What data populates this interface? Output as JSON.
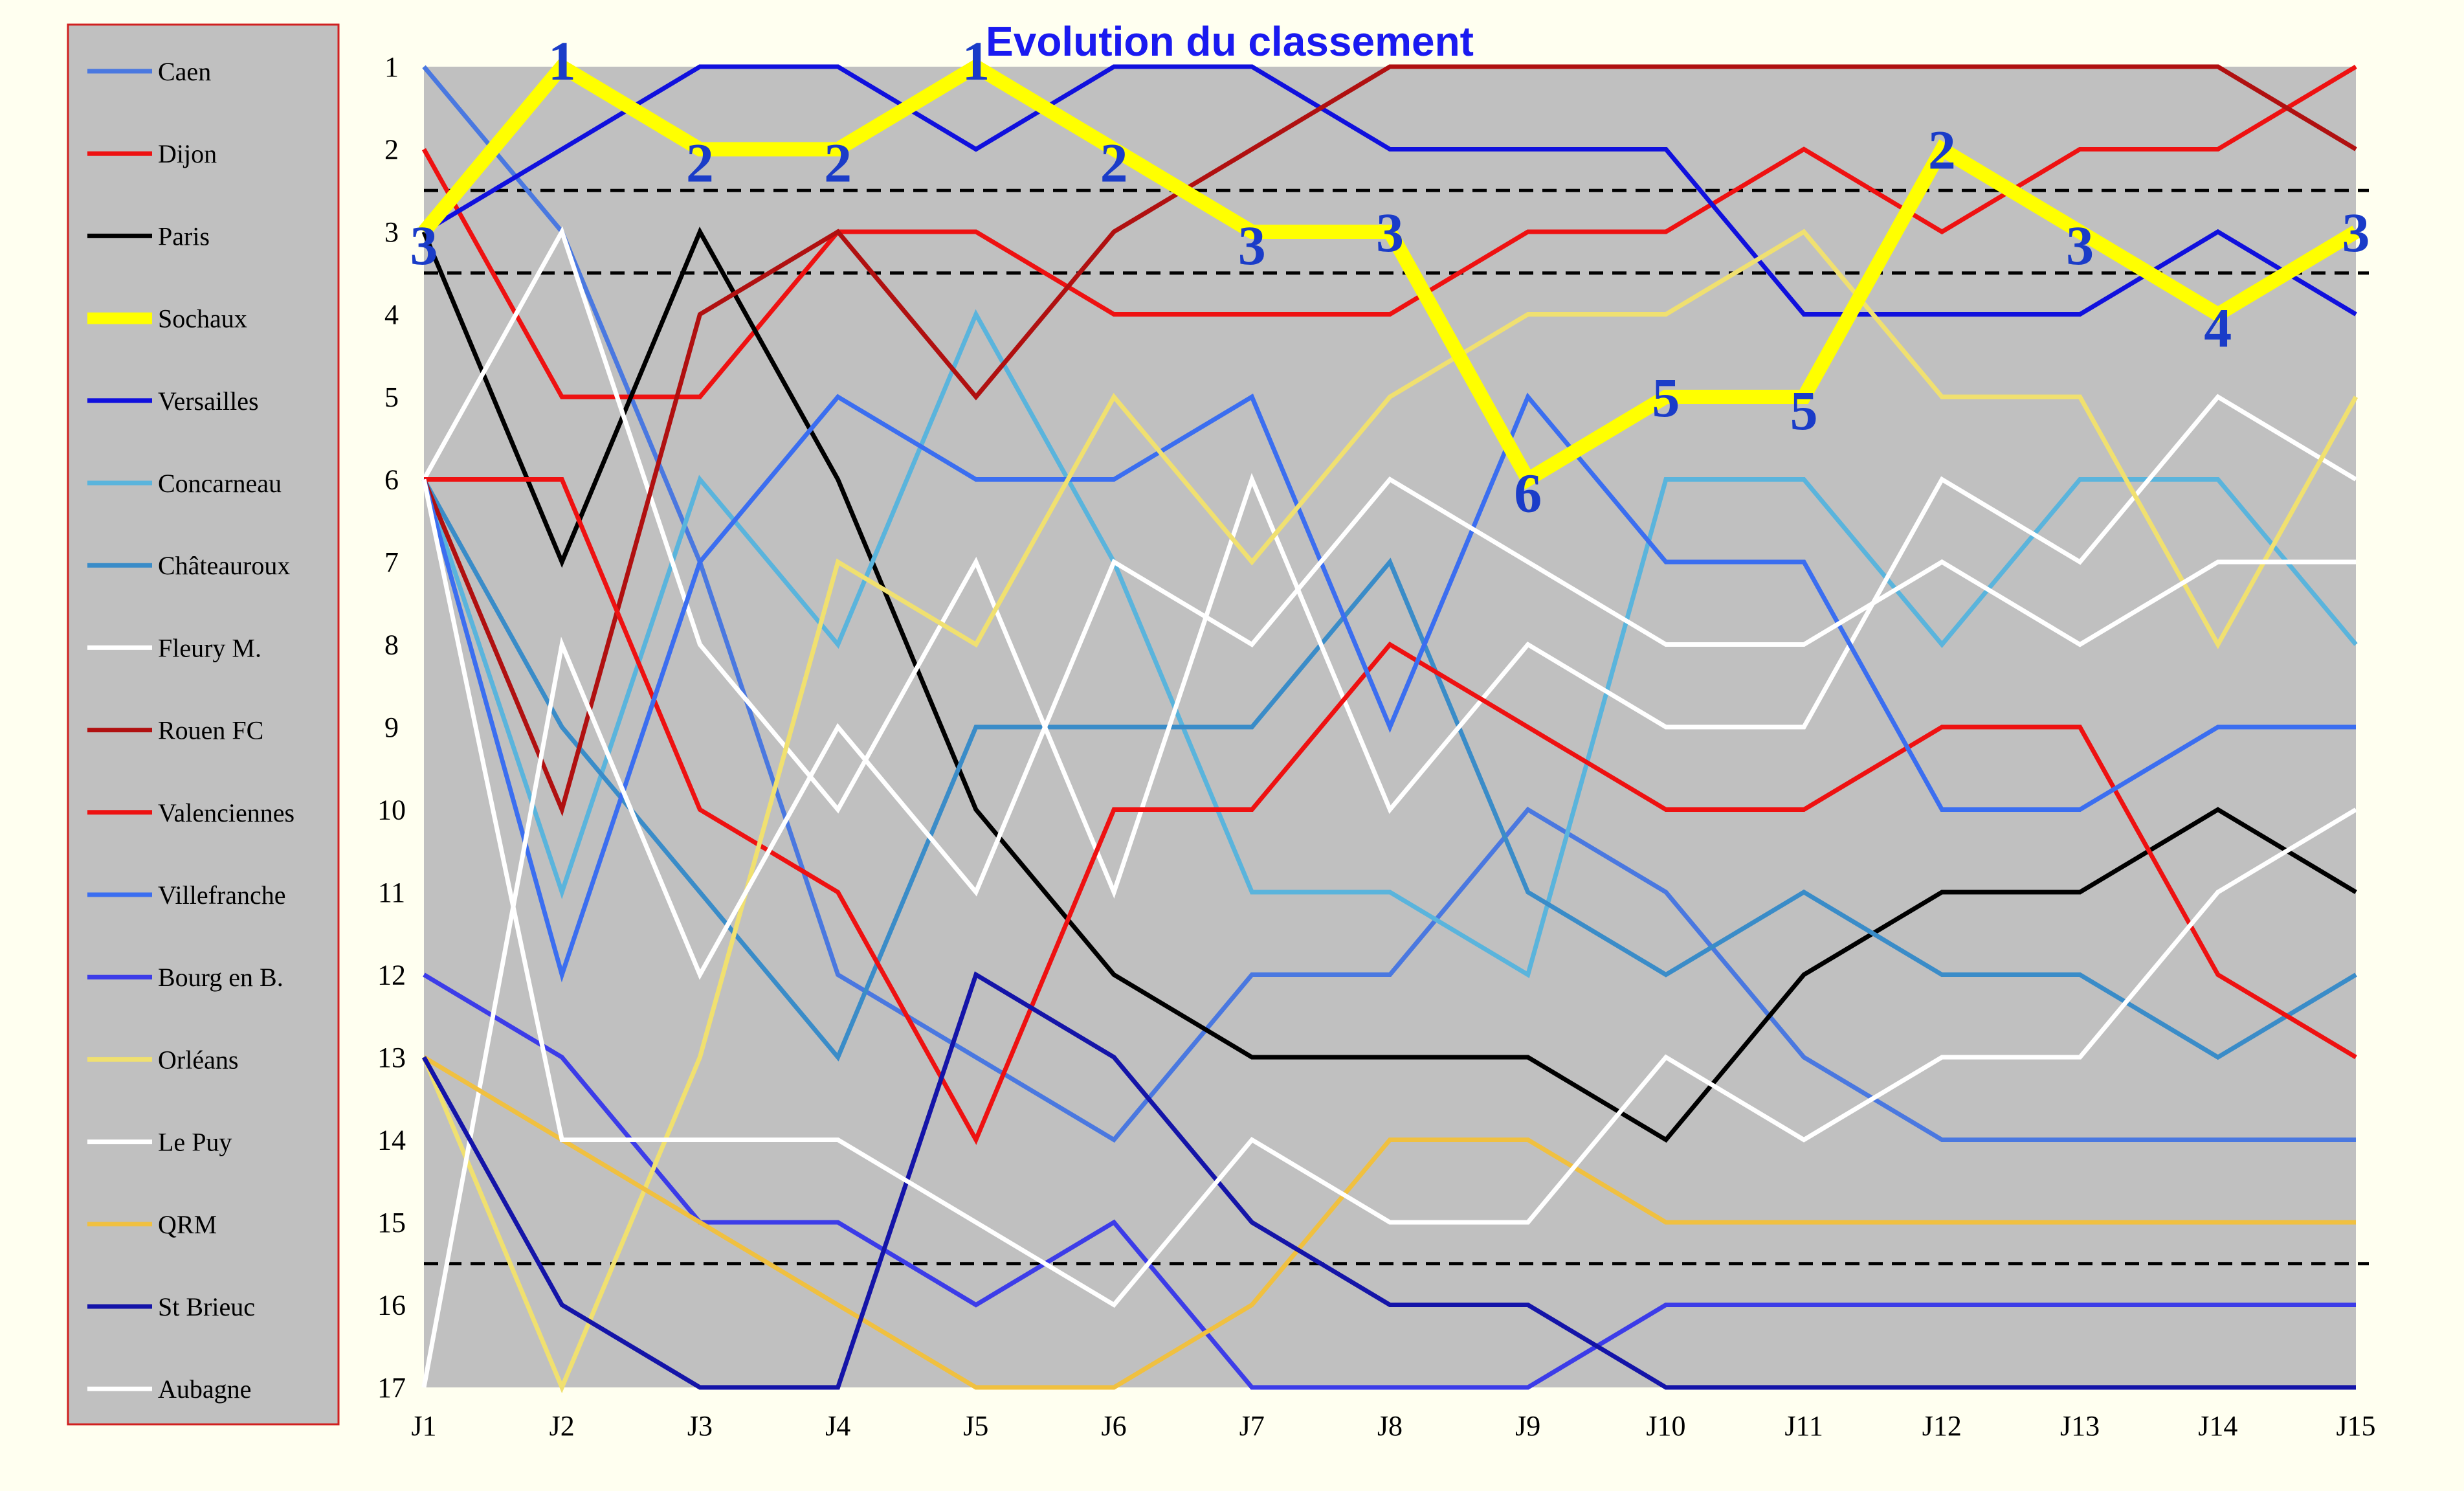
{
  "chart_data": {
    "type": "line",
    "title": "Evolution du classement",
    "xlabel": "",
    "ylabel": "",
    "ylim": [
      17,
      1
    ],
    "y_reversed": true,
    "y_ticks": [
      1,
      2,
      3,
      4,
      5,
      6,
      7,
      8,
      9,
      10,
      11,
      12,
      13,
      14,
      15,
      16,
      17
    ],
    "x": [
      "J1",
      "J2",
      "J3",
      "J4",
      "J5",
      "J6",
      "J7",
      "J8",
      "J9",
      "J10",
      "J11",
      "J12",
      "J13",
      "J14",
      "J15"
    ],
    "grid": false,
    "plot_background": "#c0c0c0",
    "legend_position": "left",
    "reference_lines": [
      2.5,
      3.5,
      15.5
    ],
    "highlight_series": "Sochaux",
    "highlight_labels": [
      3,
      1,
      2,
      2,
      1,
      2,
      3,
      3,
      6,
      5,
      5,
      2,
      3,
      4,
      3
    ],
    "series": [
      {
        "name": "Caen",
        "color": "#4a78e0",
        "values": [
          1,
          3,
          7,
          12,
          13,
          14,
          12,
          12,
          10,
          11,
          13,
          14,
          14,
          14,
          14
        ]
      },
      {
        "name": "Dijon",
        "color": "#ee1111",
        "values": [
          2,
          5,
          5,
          3,
          3,
          4,
          4,
          4,
          3,
          3,
          2,
          3,
          2,
          2,
          1
        ]
      },
      {
        "name": "Paris",
        "color": "#000000",
        "values": [
          3,
          7,
          3,
          6,
          10,
          12,
          13,
          13,
          13,
          14,
          12,
          11,
          11,
          10,
          11
        ]
      },
      {
        "name": "Sochaux",
        "color": "#ffff00",
        "values": [
          3,
          1,
          2,
          2,
          1,
          2,
          3,
          3,
          6,
          5,
          5,
          2,
          3,
          4,
          3
        ]
      },
      {
        "name": "Versailles",
        "color": "#1010dd",
        "values": [
          3,
          2,
          1,
          1,
          2,
          1,
          1,
          2,
          2,
          2,
          4,
          4,
          4,
          3,
          4
        ]
      },
      {
        "name": "Concarneau",
        "color": "#5ab4dc",
        "values": [
          6,
          11,
          6,
          8,
          4,
          7,
          11,
          11,
          12,
          6,
          6,
          8,
          6,
          6,
          8
        ]
      },
      {
        "name": "Châteauroux",
        "color": "#3a8cc8",
        "values": [
          6,
          9,
          11,
          13,
          9,
          9,
          9,
          7,
          11,
          12,
          11,
          12,
          12,
          13,
          12
        ]
      },
      {
        "name": "Fleury M.",
        "color": "#ffffff",
        "values": [
          6,
          3,
          8,
          10,
          7,
          11,
          6,
          10,
          8,
          9,
          9,
          6,
          7,
          5,
          6
        ]
      },
      {
        "name": "Rouen FC",
        "color": "#b01010",
        "values": [
          6,
          10,
          4,
          3,
          5,
          3,
          2,
          1,
          1,
          1,
          1,
          1,
          1,
          1,
          2
        ]
      },
      {
        "name": "Valenciennes",
        "color": "#ee1111",
        "values": [
          6,
          6,
          10,
          11,
          14,
          10,
          10,
          8,
          9,
          10,
          10,
          9,
          9,
          12,
          13
        ]
      },
      {
        "name": "Villefranche",
        "color": "#3b6ef0",
        "values": [
          6,
          12,
          7,
          5,
          6,
          6,
          5,
          9,
          5,
          7,
          7,
          10,
          10,
          9,
          9
        ]
      },
      {
        "name": "Bourg en B.",
        "color": "#3c3ce8",
        "values": [
          12,
          13,
          15,
          15,
          16,
          15,
          17,
          17,
          17,
          16,
          16,
          16,
          16,
          16,
          16
        ]
      },
      {
        "name": "Orléans",
        "color": "#f0e070",
        "values": [
          13,
          17,
          13,
          7,
          8,
          5,
          7,
          5,
          4,
          4,
          3,
          5,
          5,
          8,
          5
        ]
      },
      {
        "name": "Le Puy",
        "color": "#ffffff",
        "values": [
          17,
          8,
          12,
          9,
          11,
          7,
          8,
          6,
          7,
          8,
          8,
          7,
          8,
          7,
          7
        ]
      },
      {
        "name": "QRM",
        "color": "#f0c040",
        "values": [
          13,
          14,
          15,
          16,
          17,
          17,
          16,
          14,
          14,
          15,
          15,
          15,
          15,
          15,
          15
        ]
      },
      {
        "name": "St Brieuc",
        "color": "#1414a8",
        "values": [
          13,
          16,
          17,
          17,
          12,
          13,
          15,
          16,
          16,
          17,
          17,
          17,
          17,
          17,
          17
        ]
      },
      {
        "name": "Aubagne",
        "color": "#ffffff",
        "values": [
          6,
          14,
          14,
          14,
          15,
          16,
          14,
          15,
          15,
          13,
          14,
          13,
          13,
          11,
          10
        ]
      }
    ]
  }
}
